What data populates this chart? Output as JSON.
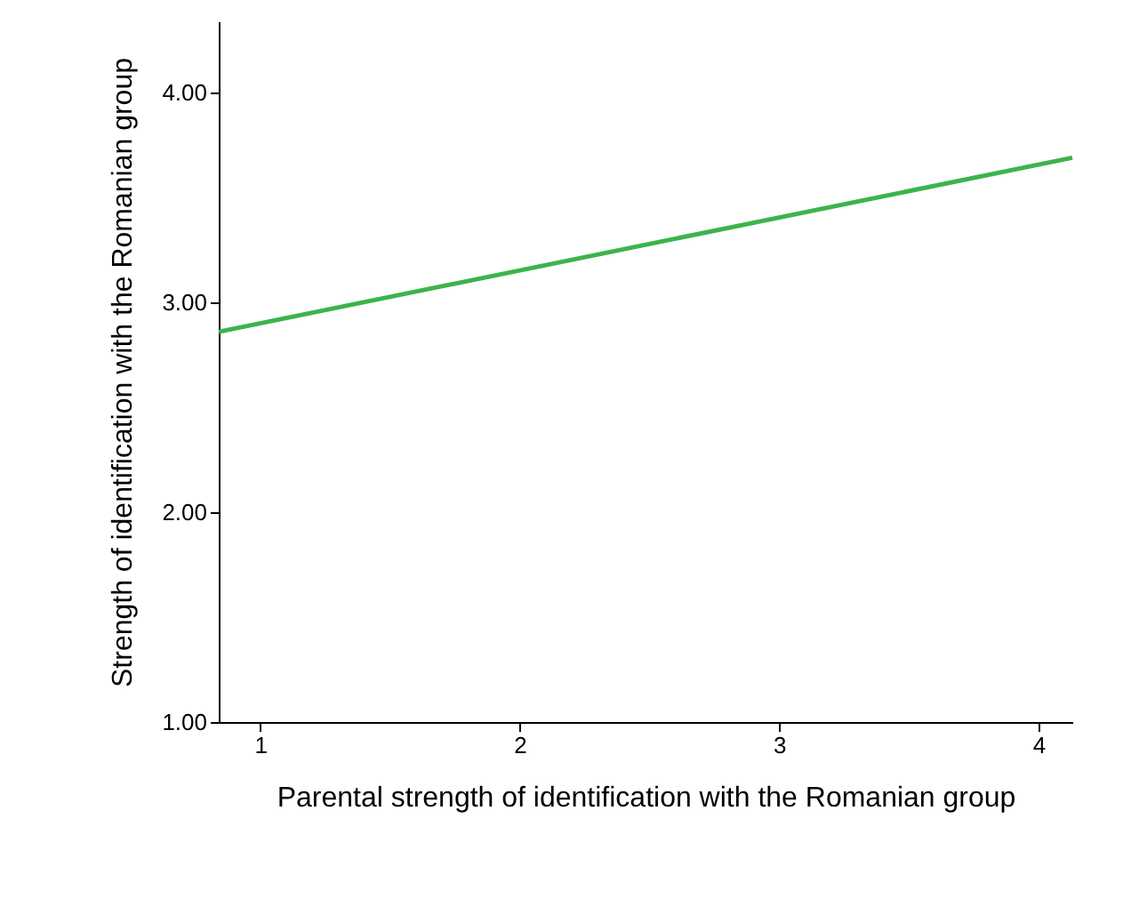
{
  "chart_data": {
    "type": "line",
    "xlabel": "Parental strength of identification with the Romanian group",
    "ylabel": "Strength of identification with the Romanian group",
    "x": [
      0.84,
      4.13
    ],
    "series": [
      {
        "color": "#3cb44b",
        "values": [
          2.86,
          3.69
        ]
      }
    ],
    "xlim": [
      0.84,
      4.13
    ],
    "xticks": [
      1,
      2,
      3,
      4
    ],
    "ylim": [
      1,
      4.34
    ],
    "yticks": [
      {
        "value": 1,
        "label": "1.00"
      },
      {
        "value": 2,
        "label": "2.00"
      },
      {
        "value": 3,
        "label": "3.00"
      },
      {
        "value": 4,
        "label": "4.00"
      }
    ],
    "grid": false,
    "legend": false,
    "marker": "none",
    "line_style": "solid"
  }
}
